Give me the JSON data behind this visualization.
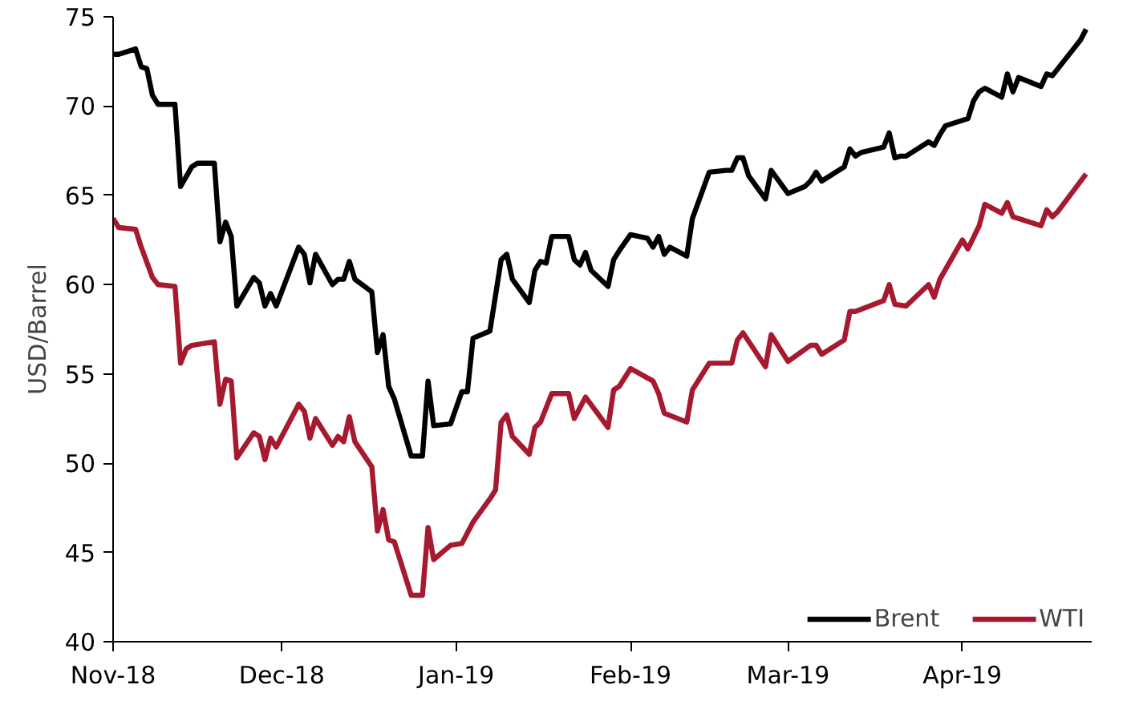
{
  "chart_data": {
    "type": "line",
    "ylabel": "USD/Barrel",
    "xlim": [
      "2018-11-01",
      "2019-04-24"
    ],
    "ylim": [
      40,
      75
    ],
    "yticks": [
      40,
      45,
      50,
      55,
      60,
      65,
      70,
      75
    ],
    "xticks": [
      {
        "value": "2018-11-01",
        "label": "Nov-18"
      },
      {
        "value": "2018-12-01",
        "label": "Dec-18"
      },
      {
        "value": "2019-01-01",
        "label": "Jan-19"
      },
      {
        "value": "2019-02-01",
        "label": "Feb-19"
      },
      {
        "value": "2019-03-01",
        "label": "Mar-19"
      },
      {
        "value": "2019-04-01",
        "label": "Apr-19"
      }
    ],
    "grid": false,
    "legend": "bottom right",
    "marker": "none",
    "line_style": "solid",
    "series": [
      {
        "name": "Brent",
        "color": "#000000",
        "x": [
          "2018-11-01",
          "2018-11-02",
          "2018-11-05",
          "2018-11-06",
          "2018-11-07",
          "2018-11-08",
          "2018-11-09",
          "2018-11-12",
          "2018-11-13",
          "2018-11-15",
          "2018-11-16",
          "2018-11-19",
          "2018-11-20",
          "2018-11-21",
          "2018-11-22",
          "2018-11-23",
          "2018-11-26",
          "2018-11-27",
          "2018-11-28",
          "2018-11-29",
          "2018-11-30",
          "2018-12-04",
          "2018-12-05",
          "2018-12-06",
          "2018-12-07",
          "2018-12-10",
          "2018-12-11",
          "2018-12-12",
          "2018-12-13",
          "2018-12-14",
          "2018-12-17",
          "2018-12-18",
          "2018-12-19",
          "2018-12-20",
          "2018-12-21",
          "2018-12-24",
          "2018-12-26",
          "2018-12-27",
          "2018-12-28",
          "2018-12-31",
          "2019-01-02",
          "2019-01-03",
          "2019-01-04",
          "2019-01-07",
          "2019-01-09",
          "2019-01-10",
          "2019-01-11",
          "2019-01-14",
          "2019-01-15",
          "2019-01-16",
          "2019-01-17",
          "2019-01-18",
          "2019-01-21",
          "2019-01-22",
          "2019-01-23",
          "2019-01-24",
          "2019-01-25",
          "2019-01-28",
          "2019-01-29",
          "2019-01-30",
          "2019-02-01",
          "2019-02-04",
          "2019-02-05",
          "2019-02-06",
          "2019-02-07",
          "2019-02-08",
          "2019-02-11",
          "2019-02-12",
          "2019-02-15",
          "2019-02-18",
          "2019-02-19",
          "2019-02-20",
          "2019-02-21",
          "2019-02-22",
          "2019-02-25",
          "2019-02-26",
          "2019-03-01",
          "2019-03-04",
          "2019-03-05",
          "2019-03-06",
          "2019-03-07",
          "2019-03-11",
          "2019-03-12",
          "2019-03-13",
          "2019-03-14",
          "2019-03-18",
          "2019-03-19",
          "2019-03-20",
          "2019-03-21",
          "2019-03-22",
          "2019-03-26",
          "2019-03-27",
          "2019-03-28",
          "2019-03-29",
          "2019-04-01",
          "2019-04-02",
          "2019-04-03",
          "2019-04-04",
          "2019-04-05",
          "2019-04-08",
          "2019-04-09",
          "2019-04-10",
          "2019-04-11",
          "2019-04-15",
          "2019-04-16",
          "2019-04-17",
          "2019-04-18",
          "2019-04-22",
          "2019-04-23"
        ],
        "values": [
          72.9,
          72.9,
          73.2,
          72.2,
          72.1,
          70.6,
          70.1,
          70.1,
          65.5,
          66.6,
          66.8,
          66.8,
          62.4,
          63.5,
          62.7,
          58.8,
          60.4,
          60.1,
          58.8,
          59.5,
          58.8,
          62.1,
          61.7,
          60.1,
          61.7,
          60.0,
          60.3,
          60.3,
          61.3,
          60.3,
          59.6,
          56.2,
          57.2,
          54.3,
          53.6,
          50.4,
          50.4,
          54.6,
          52.1,
          52.2,
          54.0,
          54.0,
          57.0,
          57.4,
          61.4,
          61.7,
          60.3,
          59.0,
          60.8,
          61.3,
          61.2,
          62.7,
          62.7,
          61.4,
          61.1,
          61.8,
          60.8,
          59.9,
          61.4,
          61.9,
          62.8,
          62.6,
          62.1,
          62.7,
          61.7,
          62.1,
          61.6,
          63.7,
          66.3,
          66.4,
          66.4,
          67.1,
          67.1,
          66.1,
          64.8,
          66.4,
          65.1,
          65.5,
          65.8,
          66.3,
          65.8,
          66.6,
          67.6,
          67.2,
          67.4,
          67.7,
          68.5,
          67.1,
          67.2,
          67.2,
          68.0,
          67.8,
          68.4,
          68.9,
          69.2,
          69.3,
          70.3,
          70.8,
          71.0,
          70.5,
          71.8,
          70.8,
          71.6,
          71.1,
          71.8,
          71.7,
          72.1,
          73.7,
          74.3
        ]
      },
      {
        "name": "WTI",
        "color": "#a6192e",
        "x": [
          "2018-11-01",
          "2018-11-02",
          "2018-11-05",
          "2018-11-06",
          "2018-11-08",
          "2018-11-09",
          "2018-11-12",
          "2018-11-13",
          "2018-11-14",
          "2018-11-15",
          "2018-11-19",
          "2018-11-20",
          "2018-11-21",
          "2018-11-22",
          "2018-11-23",
          "2018-11-26",
          "2018-11-27",
          "2018-11-28",
          "2018-11-29",
          "2018-11-30",
          "2018-12-04",
          "2018-12-05",
          "2018-12-06",
          "2018-12-07",
          "2018-12-10",
          "2018-12-11",
          "2018-12-12",
          "2018-12-13",
          "2018-12-14",
          "2018-12-17",
          "2018-12-18",
          "2018-12-19",
          "2018-12-20",
          "2018-12-21",
          "2018-12-24",
          "2018-12-26",
          "2018-12-27",
          "2018-12-28",
          "2018-12-31",
          "2019-01-02",
          "2019-01-04",
          "2019-01-07",
          "2019-01-08",
          "2019-01-09",
          "2019-01-10",
          "2019-01-11",
          "2019-01-14",
          "2019-01-15",
          "2019-01-16",
          "2019-01-18",
          "2019-01-21",
          "2019-01-22",
          "2019-01-24",
          "2019-01-28",
          "2019-01-29",
          "2019-01-30",
          "2019-02-01",
          "2019-02-05",
          "2019-02-06",
          "2019-02-07",
          "2019-02-11",
          "2019-02-12",
          "2019-02-15",
          "2019-02-19",
          "2019-02-20",
          "2019-02-21",
          "2019-02-25",
          "2019-02-26",
          "2019-03-01",
          "2019-03-05",
          "2019-03-06",
          "2019-03-07",
          "2019-03-11",
          "2019-03-12",
          "2019-03-13",
          "2019-03-18",
          "2019-03-19",
          "2019-03-20",
          "2019-03-22",
          "2019-03-26",
          "2019-03-27",
          "2019-03-28",
          "2019-04-01",
          "2019-04-02",
          "2019-04-04",
          "2019-04-05",
          "2019-04-08",
          "2019-04-09",
          "2019-04-10",
          "2019-04-15",
          "2019-04-16",
          "2019-04-17",
          "2019-04-18",
          "2019-04-23"
        ],
        "values": [
          63.7,
          63.2,
          63.1,
          62.1,
          60.4,
          60.0,
          59.9,
          55.6,
          56.4,
          56.6,
          56.8,
          53.3,
          54.7,
          54.6,
          50.3,
          51.7,
          51.5,
          50.2,
          51.4,
          50.9,
          53.3,
          52.9,
          51.4,
          52.5,
          51.0,
          51.5,
          51.2,
          52.6,
          51.2,
          49.8,
          46.2,
          47.4,
          45.7,
          45.6,
          42.6,
          42.6,
          46.4,
          44.6,
          45.4,
          45.5,
          46.7,
          48.0,
          48.5,
          52.3,
          52.7,
          51.5,
          50.5,
          52.0,
          52.3,
          53.9,
          53.9,
          52.5,
          53.7,
          52.0,
          54.1,
          54.3,
          55.3,
          54.6,
          53.9,
          52.8,
          52.3,
          54.1,
          55.6,
          55.6,
          56.9,
          57.3,
          55.4,
          57.2,
          55.7,
          56.6,
          56.6,
          56.1,
          56.9,
          58.5,
          58.5,
          59.1,
          60.0,
          58.9,
          58.8,
          60.0,
          59.3,
          60.3,
          62.5,
          62.0,
          63.3,
          64.5,
          64.0,
          64.6,
          63.8,
          63.3,
          64.2,
          63.8,
          64.1,
          66.2
        ]
      }
    ]
  }
}
